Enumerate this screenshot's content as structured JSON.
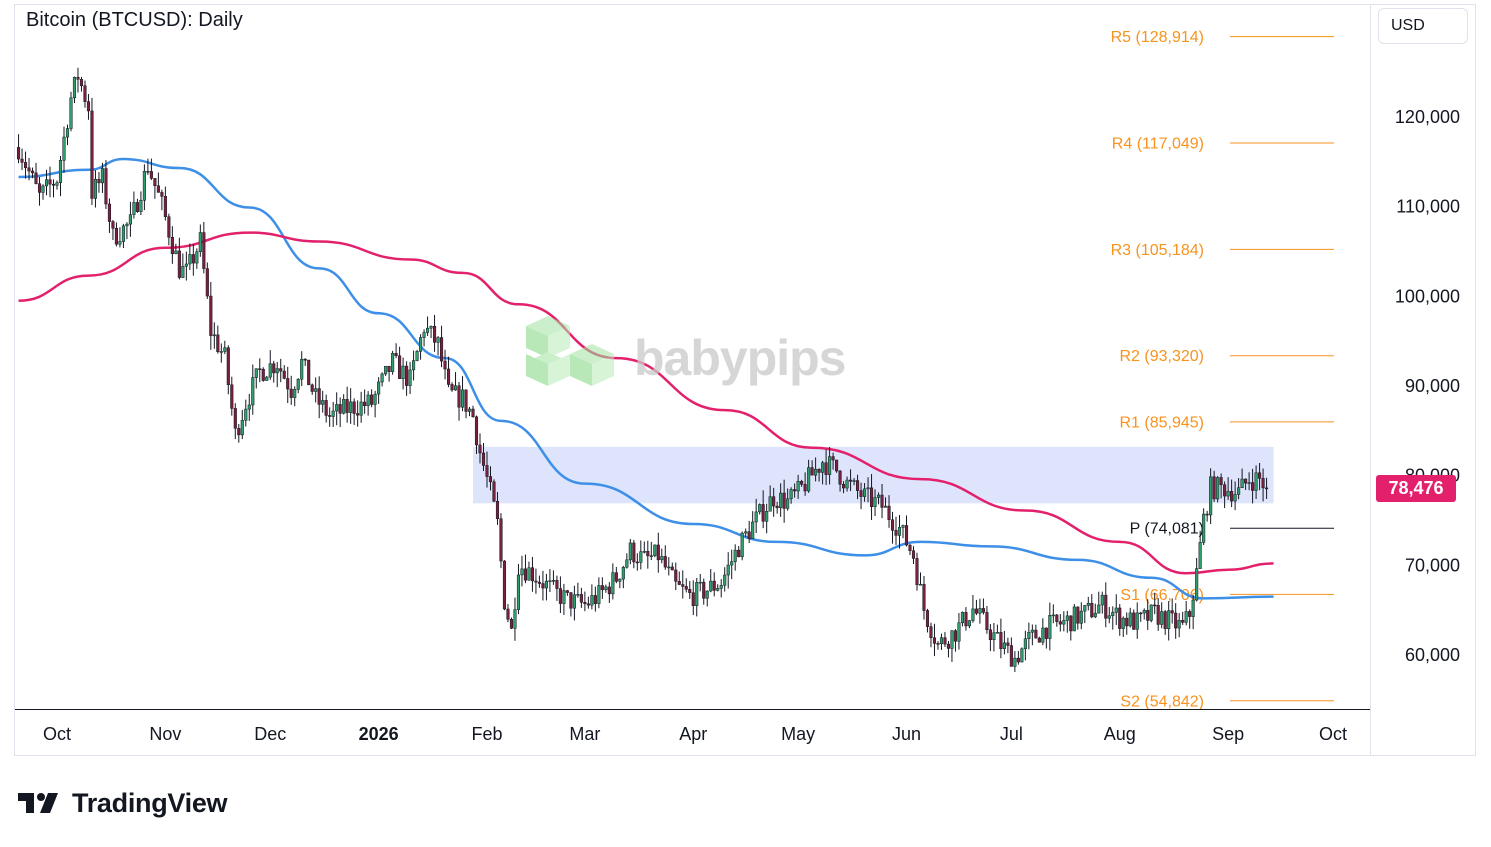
{
  "header": {
    "title": "Bitcoin (BTCUSD): Daily",
    "currency": "USD"
  },
  "brand": {
    "name": "TradingView",
    "watermark": "babypips"
  },
  "colors": {
    "up": "#26a69a",
    "down": "#9c2a4a",
    "candle_up": "#2e9e6b",
    "candle_down": "#7a1f3d",
    "ma_fast": "#3d8fe8",
    "ma_slow": "#e3206c",
    "pivot_levels": "#f7931e",
    "pivot_p": "#131722",
    "zone": "#dce3fb",
    "price_tag": "#e3206c"
  },
  "chart_data": {
    "type": "candlestick",
    "title": "Bitcoin (BTCUSD): Daily",
    "y_ticks": [
      60000,
      70000,
      80000,
      90000,
      100000,
      110000,
      120000
    ],
    "y_tick_labels": [
      "60,000",
      "70,000",
      "80,000",
      "90,000",
      "100,000",
      "110,000",
      "120,000"
    ],
    "ylim": [
      54000,
      130000
    ],
    "x_ticks": [
      "Oct",
      "Nov",
      "Dec",
      "2026",
      "Feb",
      "Mar",
      "Apr",
      "May",
      "Jun",
      "Jul",
      "Aug",
      "Sep",
      "Oct"
    ],
    "x_range": [
      "2025-09-20",
      "2026-10-10"
    ],
    "last_price": 78476,
    "last_price_label": "78,476",
    "pivot_levels": [
      {
        "name": "R5",
        "value": 128914,
        "label": "R5 (128,914)"
      },
      {
        "name": "R4",
        "value": 117049,
        "label": "R4 (117,049)"
      },
      {
        "name": "R3",
        "value": 105184,
        "label": "R3 (105,184)"
      },
      {
        "name": "R2",
        "value": 93320,
        "label": "R2 (93,320)"
      },
      {
        "name": "R1",
        "value": 85945,
        "label": "R1 (85,945)"
      },
      {
        "name": "P",
        "value": 74081,
        "label": "P (74,081)"
      },
      {
        "name": "S1",
        "value": 66706,
        "label": "S1 (66,706)"
      },
      {
        "name": "S2",
        "value": 54842,
        "label": "S2 (54,842)"
      }
    ],
    "zone": {
      "low": 76800,
      "high": 83100,
      "from": "2026-01-28",
      "to": "2026-09-14"
    },
    "close_path": [
      [
        "2025-09-20",
        116500
      ],
      [
        "2025-09-26",
        111000
      ],
      [
        "2025-10-01",
        113000
      ],
      [
        "2025-10-05",
        122000
      ],
      [
        "2025-10-07",
        124500
      ],
      [
        "2025-10-10",
        121000
      ],
      [
        "2025-10-11",
        111500
      ],
      [
        "2025-10-14",
        113000
      ],
      [
        "2025-10-17",
        106500
      ],
      [
        "2025-10-22",
        108000
      ],
      [
        "2025-10-27",
        114500
      ],
      [
        "2025-10-31",
        110000
      ],
      [
        "2025-11-05",
        103000
      ],
      [
        "2025-11-07",
        102500
      ],
      [
        "2025-11-11",
        106000
      ],
      [
        "2025-11-14",
        96000
      ],
      [
        "2025-11-18",
        93000
      ],
      [
        "2025-11-21",
        84500
      ],
      [
        "2025-11-24",
        88000
      ],
      [
        "2025-11-28",
        91500
      ],
      [
        "2025-12-03",
        92500
      ],
      [
        "2025-12-07",
        89500
      ],
      [
        "2025-12-10",
        92500
      ],
      [
        "2025-12-14",
        88500
      ],
      [
        "2025-12-18",
        86500
      ],
      [
        "2025-12-24",
        87500
      ],
      [
        "2025-12-30",
        88000
      ],
      [
        "2026-01-05",
        92500
      ],
      [
        "2026-01-10",
        90500
      ],
      [
        "2026-01-14",
        96500
      ],
      [
        "2026-01-18",
        94500
      ],
      [
        "2026-01-21",
        89000
      ],
      [
        "2026-01-25",
        88500
      ],
      [
        "2026-01-28",
        86500
      ],
      [
        "2026-01-30",
        82500
      ],
      [
        "2026-02-02",
        78000
      ],
      [
        "2026-02-04",
        74500
      ],
      [
        "2026-02-06",
        66000
      ],
      [
        "2026-02-08",
        62500
      ],
      [
        "2026-02-10",
        70000
      ],
      [
        "2026-02-14",
        69000
      ],
      [
        "2026-02-20",
        67000
      ],
      [
        "2026-02-24",
        66000
      ],
      [
        "2026-03-01",
        65500
      ],
      [
        "2026-03-05",
        66500
      ],
      [
        "2026-03-10",
        68500
      ],
      [
        "2026-03-14",
        71500
      ],
      [
        "2026-03-18",
        70500
      ],
      [
        "2026-03-22",
        71000
      ],
      [
        "2026-03-27",
        67500
      ],
      [
        "2026-03-31",
        66500
      ],
      [
        "2026-04-04",
        67000
      ],
      [
        "2026-04-09",
        68000
      ],
      [
        "2026-04-14",
        72000
      ],
      [
        "2026-04-19",
        75000
      ],
      [
        "2026-04-24",
        77500
      ],
      [
        "2026-04-28",
        77000
      ],
      [
        "2026-05-01",
        78000
      ],
      [
        "2026-05-05",
        80000
      ],
      [
        "2026-05-08",
        81500
      ],
      [
        "2026-05-12",
        80500
      ],
      [
        "2026-05-15",
        79000
      ],
      [
        "2026-05-20",
        77500
      ],
      [
        "2026-05-25",
        76500
      ],
      [
        "2026-05-30",
        74000
      ],
      [
        "2026-06-03",
        71000
      ],
      [
        "2026-06-06",
        65000
      ],
      [
        "2026-06-10",
        61000
      ],
      [
        "2026-06-15",
        62500
      ],
      [
        "2026-06-20",
        65000
      ],
      [
        "2026-06-24",
        63000
      ],
      [
        "2026-06-28",
        61000
      ],
      [
        "2026-07-02",
        59500
      ],
      [
        "2026-07-06",
        61500
      ],
      [
        "2026-07-11",
        63000
      ],
      [
        "2026-07-16",
        63500
      ],
      [
        "2026-07-22",
        64500
      ],
      [
        "2026-07-27",
        65500
      ],
      [
        "2026-08-01",
        64000
      ],
      [
        "2026-08-06",
        63500
      ],
      [
        "2026-08-11",
        64500
      ],
      [
        "2026-08-16",
        63500
      ],
      [
        "2026-08-19",
        63000
      ],
      [
        "2026-08-21",
        64500
      ],
      [
        "2026-08-23",
        69000
      ],
      [
        "2026-08-25",
        75000
      ],
      [
        "2026-08-27",
        78500
      ],
      [
        "2026-08-31",
        78500
      ],
      [
        "2026-09-04",
        78000
      ],
      [
        "2026-09-07",
        79500
      ],
      [
        "2026-09-10",
        79500
      ],
      [
        "2026-09-12",
        78476
      ]
    ],
    "series": [
      {
        "name": "BTCUSD",
        "kind": "candles"
      },
      {
        "name": "MA fast",
        "color": "#3d8fe8",
        "points": [
          [
            "2025-09-20",
            113200
          ],
          [
            "2025-10-10",
            114000
          ],
          [
            "2025-10-20",
            115200
          ],
          [
            "2025-11-05",
            114200
          ],
          [
            "2025-11-25",
            109800
          ],
          [
            "2025-12-15",
            103000
          ],
          [
            "2026-01-01",
            98000
          ],
          [
            "2026-01-20",
            93000
          ],
          [
            "2026-02-05",
            86000
          ],
          [
            "2026-03-01",
            79000
          ],
          [
            "2026-04-01",
            74500
          ],
          [
            "2026-04-25",
            72500
          ],
          [
            "2026-05-20",
            71000
          ],
          [
            "2026-06-05",
            72500
          ],
          [
            "2026-06-25",
            72000
          ],
          [
            "2026-07-20",
            70500
          ],
          [
            "2026-08-10",
            68500
          ],
          [
            "2026-08-25",
            66200
          ],
          [
            "2026-09-14",
            66400
          ]
        ]
      },
      {
        "name": "MA slow",
        "color": "#e3206c",
        "points": [
          [
            "2025-09-20",
            99400
          ],
          [
            "2025-10-10",
            102200
          ],
          [
            "2025-11-01",
            105300
          ],
          [
            "2025-11-25",
            107000
          ],
          [
            "2025-12-15",
            106000
          ],
          [
            "2026-01-10",
            104000
          ],
          [
            "2026-01-25",
            102500
          ],
          [
            "2026-02-10",
            99000
          ],
          [
            "2026-03-10",
            93000
          ],
          [
            "2026-04-10",
            87200
          ],
          [
            "2026-05-05",
            83000
          ],
          [
            "2026-06-05",
            79500
          ],
          [
            "2026-07-05",
            76000
          ],
          [
            "2026-08-01",
            72500
          ],
          [
            "2026-08-20",
            69000
          ],
          [
            "2026-09-01",
            69400
          ],
          [
            "2026-09-14",
            70100
          ]
        ]
      }
    ]
  }
}
